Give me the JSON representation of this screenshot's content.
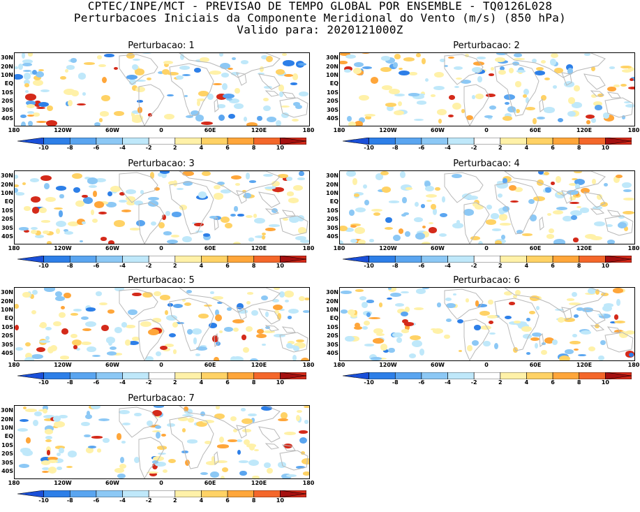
{
  "header": {
    "line1": "CPTEC/INPE/MCT - PREVISAO DE TEMPO GLOBAL POR ENSEMBLE - TQ0126L028",
    "line2": "Perturbacoes Iniciais da Componente Meridional do Vento (m/s) (850 hPa)",
    "line3": "Valido para: 2020121000Z"
  },
  "panels": [
    {
      "title": "Perturbacao: 1"
    },
    {
      "title": "Perturbacao: 2"
    },
    {
      "title": "Perturbacao: 3"
    },
    {
      "title": "Perturbacao: 4"
    },
    {
      "title": "Perturbacao: 5"
    },
    {
      "title": "Perturbacao: 6"
    },
    {
      "title": "Perturbacao: 7"
    }
  ],
  "lat_labels": [
    "30N",
    "20N",
    "10N",
    "EQ",
    "10S",
    "20S",
    "30S",
    "40S"
  ],
  "lon_labels": [
    "180",
    "120W",
    "60W",
    "0",
    "60E",
    "120E",
    "180"
  ],
  "colorbar": {
    "labels": [
      "-10",
      "-8",
      "-6",
      "-4",
      "-2",
      "2",
      "4",
      "6",
      "8",
      "10"
    ],
    "colors": [
      "#1a4fd8",
      "#2d7fe8",
      "#5aa5f0",
      "#8cc8f5",
      "#bfe8fa",
      "#ffffff",
      "#fff1a8",
      "#ffd265",
      "#ffa63a",
      "#f4672a",
      "#d42a1a",
      "#a50f0f"
    ]
  },
  "coast_color": "#b8b8b8"
}
